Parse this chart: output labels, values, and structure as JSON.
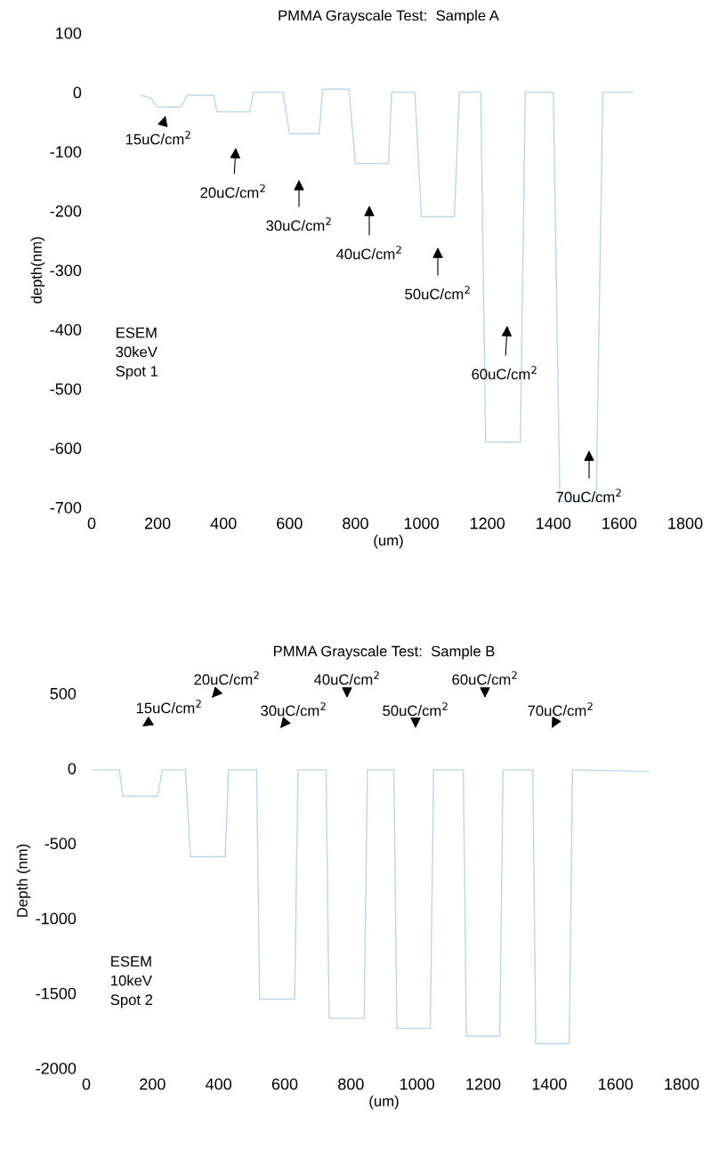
{
  "chart_data": [
    {
      "type": "line",
      "title": "PMMA Grayscale Test:  Sample A",
      "xlabel": "(um)",
      "ylabel": "depth(nm)",
      "xlim": [
        0,
        1800
      ],
      "xticks": [
        0,
        200,
        400,
        600,
        800,
        1000,
        1200,
        1400,
        1600,
        1800
      ],
      "ylim": [
        -700,
        100
      ],
      "yticks": [
        100,
        0,
        -100,
        -200,
        -300,
        -400,
        -500,
        -600,
        -700
      ],
      "grid": false,
      "legend": false,
      "series": [
        {
          "color": "#b8d8ec",
          "x": [
            150,
            180,
            200,
            270,
            290,
            370,
            380,
            480,
            490,
            580,
            600,
            690,
            700,
            780,
            800,
            900,
            910,
            980,
            1000,
            1100,
            1115,
            1180,
            1195,
            1300,
            1315,
            1400,
            1420,
            1530,
            1550,
            1640
          ],
          "values": [
            -5,
            -10,
            -25,
            -25,
            -5,
            -5,
            -33,
            -33,
            0,
            0,
            -70,
            -70,
            5,
            5,
            -120,
            -120,
            0,
            0,
            -210,
            -210,
            0,
            0,
            -590,
            -590,
            0,
            0,
            -690,
            -690,
            0,
            0
          ]
        }
      ],
      "annotations": [
        "15uC/cm$^{2}$",
        "20uC/cm$^{2}$",
        "30uC/cm$^{2}$",
        "40uC/cm$^{2}$",
        "50uC/cm$^{2}$",
        "60uC/cm$^{2}$",
        "70uC/cm$^{2}$",
        "ESEM\n30keV\nSpot 1"
      ]
    },
    {
      "type": "line",
      "title": "PMMA Grayscale Test:  Sample B",
      "xlabel": "(um)",
      "ylabel": "Depth (nm)",
      "xlim": [
        0,
        1800
      ],
      "xticks": [
        0,
        200,
        400,
        600,
        800,
        1000,
        1200,
        1400,
        1600,
        1800
      ],
      "ylim": [
        -2000,
        500
      ],
      "yticks": [
        500,
        0,
        -500,
        -1000,
        -1500,
        -2000
      ],
      "grid": false,
      "legend": false,
      "series": [
        {
          "color": "#b8d8ec",
          "x": [
            20,
            100,
            110,
            215,
            230,
            300,
            315,
            420,
            430,
            515,
            524,
            630,
            640,
            725,
            734,
            840,
            850,
            930,
            939,
            1040,
            1050,
            1140,
            1149,
            1250,
            1260,
            1350,
            1359,
            1460,
            1470,
            1700
          ],
          "values": [
            -10,
            -10,
            -186,
            -186,
            -10,
            -10,
            -590,
            -590,
            -10,
            -10,
            -1540,
            -1540,
            -10,
            -10,
            -1668,
            -1668,
            -10,
            -10,
            -1735,
            -1735,
            -10,
            -10,
            -1788,
            -1788,
            -10,
            -10,
            -1837,
            -1837,
            -10,
            -20
          ]
        }
      ],
      "annotations": [
        "15uC/cm$^{2}$",
        "20uC/cm$^{2}$",
        "30uC/cm$^{2}$",
        "40uC/cm$^{2}$",
        "50uC/cm$^{2}$",
        "60uC/cm$^{2}$",
        "70uC/cm$^{2}$",
        "ESEM\n10keV\nSpot 2"
      ]
    }
  ]
}
